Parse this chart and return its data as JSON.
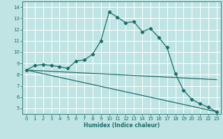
{
  "xlabel": "Humidex (Indice chaleur)",
  "background_color": "#c0e4e4",
  "grid_color": "#ffffff",
  "line_color": "#1a6e6a",
  "xlim": [
    -0.5,
    23.5
  ],
  "ylim": [
    4.5,
    14.5
  ],
  "xticks": [
    0,
    1,
    2,
    3,
    4,
    5,
    6,
    7,
    8,
    9,
    10,
    11,
    12,
    13,
    14,
    15,
    16,
    17,
    18,
    19,
    20,
    21,
    22,
    23
  ],
  "yticks": [
    5,
    6,
    7,
    8,
    9,
    10,
    11,
    12,
    13,
    14
  ],
  "curve1_x": [
    0,
    1,
    2,
    3,
    4,
    5,
    6,
    7,
    8,
    9,
    10,
    11,
    12,
    13,
    14,
    15,
    16,
    17,
    18,
    19,
    20,
    21,
    22,
    23
  ],
  "curve1_y": [
    8.4,
    8.8,
    8.9,
    8.8,
    8.7,
    8.55,
    9.2,
    9.3,
    9.8,
    11.0,
    13.55,
    13.1,
    12.6,
    12.7,
    11.8,
    12.1,
    11.3,
    10.4,
    8.1,
    6.6,
    5.8,
    5.4,
    5.1,
    4.7
  ],
  "curve2_x": [
    0,
    23
  ],
  "curve2_y": [
    8.4,
    7.55
  ],
  "curve3_x": [
    0,
    23
  ],
  "curve3_y": [
    8.4,
    4.7
  ],
  "markersize": 2.2,
  "linewidth": 0.9,
  "tick_fontsize": 5.0,
  "xlabel_fontsize": 5.5
}
